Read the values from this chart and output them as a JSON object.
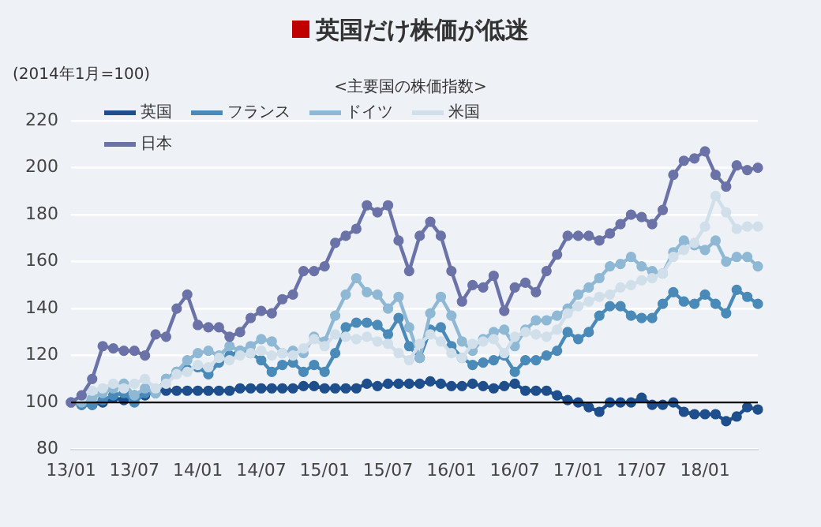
{
  "chart_data": {
    "type": "line",
    "title": "英国だけ株価が低迷",
    "subtitle": "<主要国の株価指数>",
    "ylabel": "(2014年1月=100)",
    "categories": [
      "13/01",
      null,
      null,
      null,
      null,
      null,
      "13/07",
      null,
      null,
      null,
      null,
      null,
      "14/01",
      null,
      null,
      null,
      null,
      null,
      "14/07",
      null,
      null,
      null,
      null,
      null,
      "15/01",
      null,
      null,
      null,
      null,
      null,
      "15/07",
      null,
      null,
      null,
      null,
      null,
      "16/01",
      null,
      null,
      null,
      null,
      null,
      "16/07",
      null,
      null,
      null,
      null,
      null,
      "17/01",
      null,
      null,
      null,
      null,
      null,
      "17/07",
      null,
      null,
      null,
      null,
      null,
      "18/01",
      null,
      null,
      null,
      null,
      null
    ],
    "series": [
      {
        "name": "英国",
        "color": "#1f4e8c",
        "values": [
          100,
          99,
          99,
          100,
          102,
          101,
          103,
          103,
          105,
          105,
          105,
          105,
          105,
          105,
          105,
          105,
          106,
          106,
          106,
          106,
          106,
          106,
          107,
          107,
          106,
          106,
          106,
          106,
          108,
          107,
          108,
          108,
          108,
          108,
          109,
          108,
          107,
          107,
          108,
          107,
          106,
          107,
          108,
          105,
          105,
          105,
          103,
          101,
          100,
          98,
          96,
          100,
          100,
          100,
          102,
          99,
          99,
          100,
          96,
          95,
          95,
          95,
          92,
          94,
          98,
          97
        ]
      },
      {
        "name": "フランス",
        "color": "#4a8ab8",
        "values": [
          100,
          99,
          99,
          101,
          103,
          104,
          100,
          104,
          104,
          110,
          113,
          114,
          115,
          112,
          117,
          120,
          122,
          121,
          118,
          113,
          116,
          117,
          113,
          116,
          113,
          121,
          132,
          134,
          134,
          133,
          129,
          136,
          124,
          119,
          131,
          132,
          124,
          119,
          116,
          117,
          118,
          120,
          113,
          118,
          118,
          120,
          122,
          130,
          127,
          130,
          137,
          141,
          141,
          137,
          136,
          136,
          142,
          147,
          143,
          142,
          146,
          142,
          138,
          148,
          145,
          142
        ]
      },
      {
        "name": "ドイツ",
        "color": "#8fb8d4",
        "values": [
          100,
          100,
          102,
          104,
          106,
          108,
          103,
          106,
          104,
          110,
          113,
          118,
          121,
          122,
          120,
          124,
          122,
          124,
          127,
          126,
          121,
          122,
          121,
          128,
          126,
          137,
          146,
          153,
          147,
          146,
          140,
          145,
          132,
          119,
          138,
          145,
          137,
          126,
          122,
          127,
          130,
          131,
          124,
          131,
          135,
          135,
          137,
          140,
          146,
          149,
          153,
          158,
          159,
          162,
          158,
          156,
          155,
          164,
          169,
          167,
          165,
          169,
          160,
          162,
          162,
          158
        ]
      },
      {
        "name": "米国",
        "color": "#d0dfea",
        "values": [
          100,
          102,
          105,
          106,
          108,
          106,
          108,
          110,
          106,
          108,
          112,
          113,
          116,
          115,
          119,
          118,
          120,
          121,
          122,
          120,
          121,
          120,
          123,
          127,
          124,
          129,
          128,
          127,
          128,
          126,
          125,
          121,
          118,
          125,
          129,
          126,
          121,
          119,
          125,
          126,
          127,
          121,
          128,
          130,
          129,
          128,
          131,
          138,
          141,
          143,
          145,
          146,
          149,
          150,
          152,
          153,
          155,
          162,
          165,
          168,
          175,
          188,
          181,
          174,
          175,
          175
        ]
      },
      {
        "name": "日本",
        "color": "#6a72a8",
        "values": [
          100,
          103,
          110,
          124,
          123,
          122,
          122,
          120,
          129,
          128,
          140,
          146,
          133,
          132,
          132,
          128,
          130,
          136,
          139,
          138,
          144,
          146,
          156,
          156,
          158,
          168,
          171,
          174,
          184,
          181,
          184,
          169,
          156,
          171,
          177,
          171,
          156,
          143,
          150,
          149,
          154,
          139,
          149,
          151,
          147,
          156,
          163,
          171,
          171,
          171,
          169,
          172,
          176,
          180,
          179,
          176,
          182,
          197,
          203,
          204,
          207,
          197,
          192,
          201,
          199,
          200
        ]
      }
    ],
    "ylim": [
      80,
      220
    ],
    "yticks": [
      80,
      100,
      120,
      140,
      160,
      180,
      200,
      220
    ],
    "grid": "y",
    "legend": "top left",
    "marker": "circle",
    "line_style": "solid",
    "ref_lines": [
      {
        "axis": "y",
        "value": 100,
        "color": "#000000"
      }
    ]
  }
}
